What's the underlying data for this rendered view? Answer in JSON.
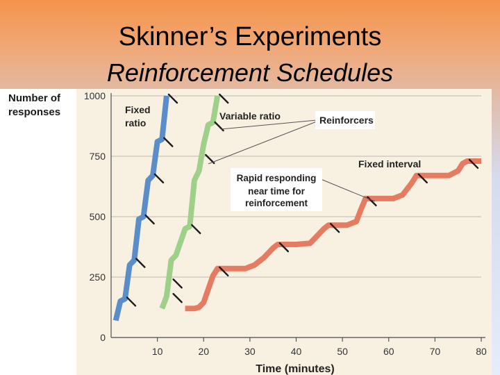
{
  "slide": {
    "title": "Skinner’s Experiments",
    "subtitle": "Reinforcement Schedules"
  },
  "chart_data": {
    "type": "line",
    "ylabel_line1": "Number of",
    "ylabel_line2": "responses",
    "xlabel": "Time (minutes)",
    "xlim": [
      0,
      80
    ],
    "ylim": [
      0,
      1000
    ],
    "xticks": [
      10,
      20,
      30,
      40,
      50,
      60,
      70,
      80
    ],
    "yticks": [
      0,
      250,
      500,
      750,
      1000
    ],
    "grid": "horizontal",
    "series": [
      {
        "name": "Fixed ratio",
        "label_line1": "Fixed",
        "label_line2": "ratio",
        "color": "#5b8ec9",
        "points": [
          [
            1,
            70
          ],
          [
            2,
            150
          ],
          [
            3,
            160
          ],
          [
            4,
            300
          ],
          [
            5,
            320
          ],
          [
            6,
            490
          ],
          [
            7,
            500
          ],
          [
            8,
            650
          ],
          [
            9,
            670
          ],
          [
            10,
            810
          ],
          [
            11,
            820
          ],
          [
            12,
            1000
          ]
        ],
        "reinforcers": [
          [
            3,
            160
          ],
          [
            5,
            320
          ],
          [
            7,
            500
          ],
          [
            9,
            670
          ],
          [
            11,
            820
          ],
          [
            12,
            1000
          ]
        ]
      },
      {
        "name": "Variable ratio",
        "color": "#9fd08a",
        "points": [
          [
            11,
            120
          ],
          [
            12,
            170
          ],
          [
            13,
            320
          ],
          [
            14,
            340
          ],
          [
            16,
            450
          ],
          [
            17,
            460
          ],
          [
            18,
            650
          ],
          [
            19,
            690
          ],
          [
            20,
            800
          ],
          [
            21,
            880
          ],
          [
            22,
            890
          ],
          [
            23,
            1000
          ]
        ],
        "reinforcers": [
          [
            13,
            175
          ],
          [
            13,
            235
          ],
          [
            17,
            460
          ],
          [
            20,
            750
          ],
          [
            22,
            885
          ],
          [
            23,
            1000
          ]
        ]
      },
      {
        "name": "Fixed interval",
        "color": "#e57c62",
        "points": [
          [
            16,
            120
          ],
          [
            18,
            120
          ],
          [
            19,
            125
          ],
          [
            20,
            145
          ],
          [
            21,
            200
          ],
          [
            22,
            255
          ],
          [
            23,
            285
          ],
          [
            29,
            285
          ],
          [
            31,
            300
          ],
          [
            33,
            330
          ],
          [
            35,
            370
          ],
          [
            36,
            385
          ],
          [
            40,
            385
          ],
          [
            43,
            390
          ],
          [
            44,
            410
          ],
          [
            46,
            450
          ],
          [
            47,
            465
          ],
          [
            51,
            465
          ],
          [
            53,
            480
          ],
          [
            54,
            530
          ],
          [
            55,
            575
          ],
          [
            61,
            575
          ],
          [
            63,
            590
          ],
          [
            65,
            640
          ],
          [
            66,
            670
          ],
          [
            73,
            670
          ],
          [
            75,
            690
          ],
          [
            76,
            720
          ],
          [
            77,
            730
          ],
          [
            80,
            730
          ]
        ],
        "reinforcers": [
          [
            23,
            285
          ],
          [
            36,
            385
          ],
          [
            47,
            465
          ],
          [
            55,
            575
          ],
          [
            66,
            670
          ],
          [
            77,
            730
          ]
        ]
      }
    ],
    "annotations": {
      "reinforcers": "Reinforcers",
      "rapid_line1": "Rapid responding",
      "rapid_line2": "near time for",
      "rapid_line3": "reinforcement",
      "fixed_interval": "Fixed interval",
      "variable_ratio": "Variable ratio"
    }
  }
}
